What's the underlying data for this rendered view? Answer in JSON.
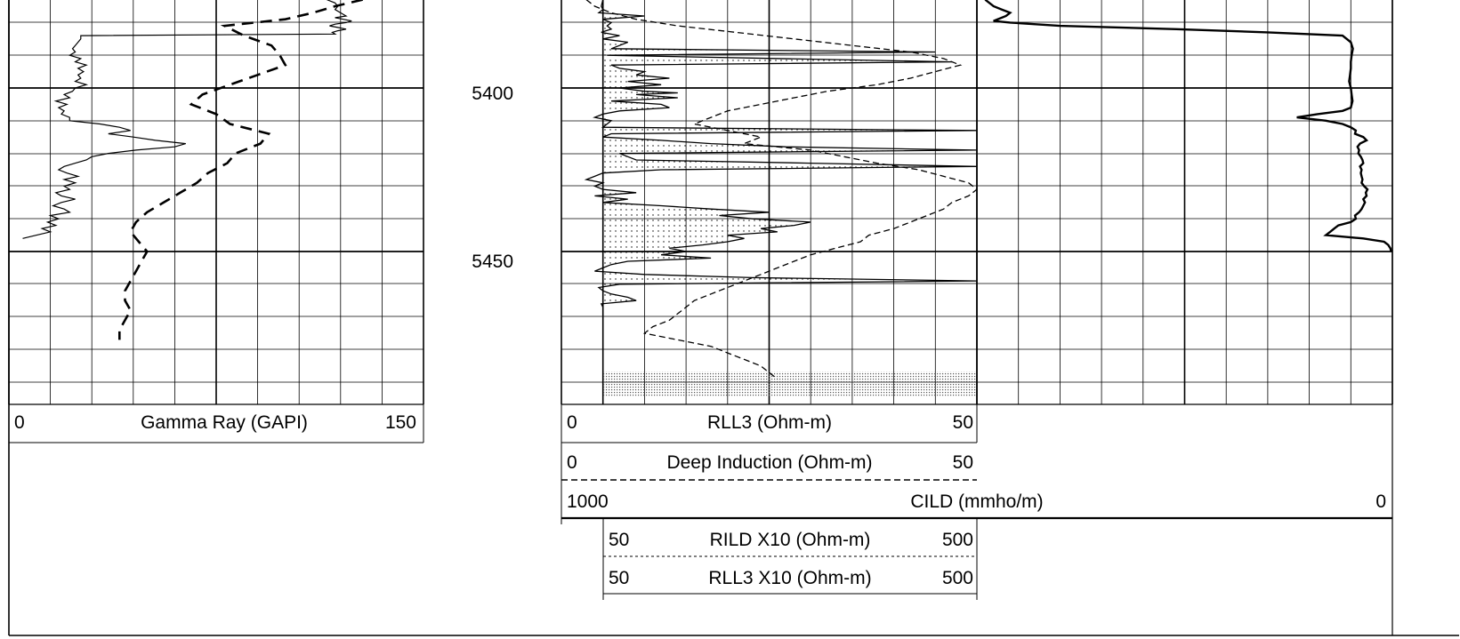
{
  "chart_data": [
    {
      "type": "line",
      "track": "left",
      "depth_labels": [
        "5400",
        "5450"
      ],
      "depth_ticks": [
        5400,
        5450
      ],
      "depth_range": [
        5373,
        5420
      ],
      "scale": {
        "left": "0",
        "label": "Gamma Ray (GAPI)",
        "right": "150"
      },
      "xlim": [
        0,
        150
      ],
      "series": [
        {
          "name": "Gamma Ray (GAPI)",
          "style": "solid",
          "x": [
            115,
            118,
            119,
            118,
            120,
            122,
            118,
            121,
            124,
            122,
            118,
            116,
            119,
            122,
            119,
            117,
            118,
            26,
            26,
            25,
            24,
            23,
            24,
            22,
            26,
            24,
            28,
            25,
            27,
            25,
            26,
            24,
            28,
            24,
            23,
            20,
            22,
            17,
            21,
            18,
            20,
            19,
            22,
            22,
            33,
            40,
            44,
            36,
            45,
            53,
            64,
            60,
            46,
            36,
            30,
            28,
            24,
            20,
            18,
            21,
            25,
            20,
            24,
            20,
            22,
            17,
            19,
            24,
            19,
            16,
            20,
            22,
            15,
            18,
            14,
            17,
            12,
            15,
            10,
            5
          ],
          "depth": [
            5373,
            5374,
            5375,
            5376,
            5377,
            5378,
            5378.5,
            5379,
            5379.5,
            5380,
            5380.5,
            5381,
            5381.5,
            5382,
            5382.5,
            5383,
            5383.5,
            5384,
            5385,
            5386,
            5387,
            5388,
            5389,
            5390,
            5391,
            5392,
            5393,
            5394,
            5395,
            5396,
            5397,
            5398,
            5399,
            5400,
            5401,
            5402,
            5403,
            5404,
            5405,
            5406,
            5407,
            5408,
            5409,
            5410,
            5411,
            5412,
            5413,
            5414,
            5415,
            5416,
            5417,
            5418,
            5419,
            5420,
            5421,
            5422,
            5423,
            5424,
            5425,
            5426,
            5427,
            5428,
            5429,
            5430,
            5431,
            5432,
            5433,
            5434,
            5435,
            5436,
            5437,
            5438,
            5439,
            5440,
            5441,
            5442,
            5443,
            5444,
            5445,
            5446
          ]
        },
        {
          "name": "",
          "style": "dashed",
          "x": [
            128,
            118,
            110,
            100,
            78,
            85,
            95,
            98,
            100,
            90,
            80,
            70,
            66,
            75,
            80,
            94,
            91,
            82,
            79,
            72,
            68,
            62,
            56,
            50,
            46,
            44,
            47,
            50,
            48,
            46,
            44,
            42,
            42,
            44,
            42,
            40,
            40
          ],
          "depth": [
            5373,
            5375,
            5377,
            5379,
            5381,
            5384,
            5387,
            5390,
            5393,
            5396,
            5399,
            5402,
            5405,
            5408,
            5411,
            5414,
            5417,
            5420,
            5423,
            5426,
            5429,
            5432,
            5435,
            5438,
            5441,
            5444,
            5447,
            5450,
            5453,
            5456,
            5459,
            5462,
            5465,
            5468,
            5471,
            5474,
            5477
          ]
        }
      ]
    },
    {
      "type": "line",
      "track": "middle",
      "depth_range": [
        5373,
        5420
      ],
      "scales": [
        {
          "left": "0",
          "label": "RLL3 (Ohm-m)",
          "right": "50",
          "line_style": "solid"
        },
        {
          "left": "0",
          "label": "Deep Induction (Ohm-m)",
          "right": "50",
          "line_style": "dashed"
        },
        {
          "left": "50",
          "label": "RILD X10 (Ohm-m)",
          "right": "500",
          "line_style": "dashed"
        },
        {
          "left": "50",
          "label": "RLL3 X10 (Ohm-m)",
          "right": "500",
          "line_style": "solid"
        }
      ],
      "xlim": [
        0,
        50
      ],
      "series": [
        {
          "name": "RLL3 (Ohm-m)",
          "style": "solid",
          "x": [
            5,
            4.8,
            5,
            4.5,
            10,
            5,
            6,
            5.5,
            6,
            4.8,
            7,
            5,
            8,
            6,
            45,
            5.5,
            47,
            6,
            7,
            10,
            9,
            13,
            8,
            12,
            7,
            10,
            14,
            9,
            14,
            6,
            12,
            13,
            7,
            5,
            4,
            6,
            5.5,
            5,
            50,
            6,
            5,
            12,
            18,
            27,
            50,
            7,
            8,
            9,
            30,
            50,
            12,
            5,
            4,
            3,
            5,
            4,
            5,
            9,
            4,
            8,
            5,
            12,
            18,
            25,
            19,
            23,
            30,
            28,
            24,
            26,
            20,
            22,
            20,
            17,
            13,
            15,
            12,
            18,
            8,
            6,
            5,
            4,
            10,
            23,
            50,
            7,
            4.5,
            5,
            6,
            8,
            9,
            4.8,
            5
          ],
          "depth": [
            5373,
            5375,
            5376,
            5377,
            5378,
            5379,
            5380,
            5381,
            5382,
            5383,
            5384,
            5385,
            5386,
            5388,
            5389,
            5390,
            5392,
            5393,
            5394,
            5395,
            5396,
            5397,
            5398,
            5399,
            5400,
            5401,
            5401.5,
            5402,
            5403,
            5404,
            5405,
            5406,
            5407,
            5408,
            5409,
            5410,
            5411,
            5412,
            5413,
            5414,
            5415,
            5416,
            5417,
            5418,
            5419,
            5420,
            5421,
            5422,
            5423,
            5424,
            5425,
            5426,
            5427,
            5428,
            5429,
            5430,
            5431,
            5432,
            5433,
            5434,
            5435,
            5436,
            5437,
            5438,
            5439,
            5440,
            5441,
            5442,
            5443,
            5444,
            5445,
            5446,
            5447,
            5448,
            5449,
            5450,
            5451,
            5452,
            5453,
            5454,
            5455,
            5456,
            5457,
            5458,
            5459,
            5460,
            5461,
            5462,
            5463,
            5464,
            5465,
            5466,
            5467
          ]
        },
        {
          "name": "Deep Induction (Ohm-m)",
          "style": "dashed",
          "x": [
            3,
            4,
            6,
            9,
            14,
            21,
            28,
            35,
            42,
            46,
            48,
            45,
            42,
            38,
            32,
            28,
            24,
            20,
            18,
            16,
            20,
            24,
            22,
            30,
            34,
            38,
            43,
            46,
            49,
            50,
            49,
            47,
            46,
            44,
            42,
            40,
            37,
            36,
            33,
            30,
            28,
            26,
            24,
            22,
            20,
            18,
            16,
            15,
            14,
            13,
            11,
            10,
            14,
            18,
            20,
            22,
            24,
            25,
            26
          ],
          "depth": [
            5373,
            5375,
            5377,
            5379,
            5381,
            5383,
            5385,
            5387,
            5389,
            5391,
            5393,
            5395,
            5397,
            5399,
            5401,
            5403,
            5405,
            5407,
            5409,
            5411,
            5413,
            5415,
            5417,
            5419,
            5421,
            5423,
            5425,
            5427,
            5429,
            5431,
            5433,
            5435,
            5437,
            5439,
            5441,
            5443,
            5445,
            5447,
            5449,
            5451,
            5453,
            5455,
            5457,
            5459,
            5461,
            5463,
            5465,
            5467,
            5469,
            5471,
            5473,
            5475,
            5477,
            5479,
            5481,
            5483,
            5485,
            5487,
            5489
          ]
        }
      ]
    },
    {
      "type": "line",
      "track": "right",
      "depth_range": [
        5373,
        5420
      ],
      "scale": {
        "left": "1000",
        "label": "CILD (mmho/m)",
        "right": "0"
      },
      "xlim": [
        1000,
        0
      ],
      "series": [
        {
          "name": "CILD (mmho/m)",
          "style": "solid",
          "x": [
            980,
            960,
            940,
            920,
            930,
            950,
            960,
            920,
            800,
            520,
            300,
            120,
            100,
            95,
            98,
            100,
            100,
            102,
            104,
            100,
            98,
            96,
            100,
            120,
            180,
            230,
            160,
            120,
            100,
            88,
            90,
            70,
            62,
            78,
            84,
            80,
            82,
            76,
            72,
            70,
            78,
            74,
            76,
            74,
            72,
            74,
            68,
            60,
            64,
            62,
            70,
            66,
            70,
            74,
            80,
            90,
            88,
            100,
            130,
            140,
            150,
            160,
            70,
            20,
            10,
            5,
            3
          ],
          "depth": [
            5373,
            5375,
            5376,
            5377,
            5378,
            5379,
            5379.5,
            5380,
            5381,
            5382,
            5383,
            5384,
            5386,
            5388,
            5390,
            5392,
            5394,
            5396,
            5398,
            5400,
            5402,
            5404,
            5406,
            5407,
            5408,
            5409,
            5410,
            5411,
            5412,
            5413,
            5414,
            5415,
            5416,
            5417,
            5418,
            5419,
            5420,
            5421,
            5422,
            5423,
            5424,
            5425,
            5426,
            5427,
            5428,
            5429,
            5430,
            5431,
            5432,
            5433,
            5434,
            5435,
            5436,
            5437,
            5438,
            5439,
            5440,
            5441,
            5442,
            5443,
            5444,
            5445,
            5446,
            5447,
            5448,
            5449,
            5450
          ]
        }
      ]
    }
  ]
}
